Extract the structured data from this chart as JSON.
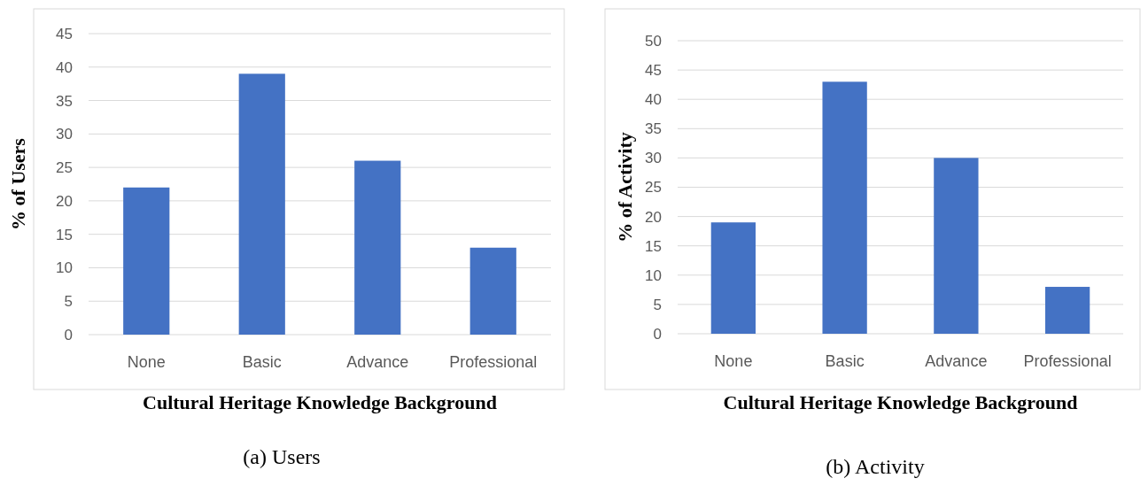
{
  "chart_data": [
    {
      "type": "bar",
      "xlabel": "Cultural Heritage Knowledge Background",
      "ylabel": "% of Users",
      "categories": [
        "None",
        "Basic",
        "Advance",
        "Professional"
      ],
      "values": [
        22,
        39,
        26,
        13
      ],
      "color": "#4472c4",
      "ylim": [
        0,
        45
      ],
      "yticks": [
        0,
        5,
        10,
        15,
        20,
        25,
        30,
        35,
        40,
        45
      ],
      "grid": "y",
      "annotations": [
        "(a)  Users"
      ]
    },
    {
      "type": "bar",
      "xlabel": "Cultural Heritage Knowledge Background",
      "ylabel": "% of Activity",
      "categories": [
        "None",
        "Basic",
        "Advance",
        "Professional"
      ],
      "values": [
        19,
        43,
        30,
        8
      ],
      "color": "#4472c4",
      "ylim": [
        0,
        50
      ],
      "yticks": [
        0,
        5,
        10,
        15,
        20,
        25,
        30,
        35,
        40,
        45,
        50
      ],
      "grid": "y",
      "annotations": [
        "(b)  Activity"
      ]
    }
  ]
}
